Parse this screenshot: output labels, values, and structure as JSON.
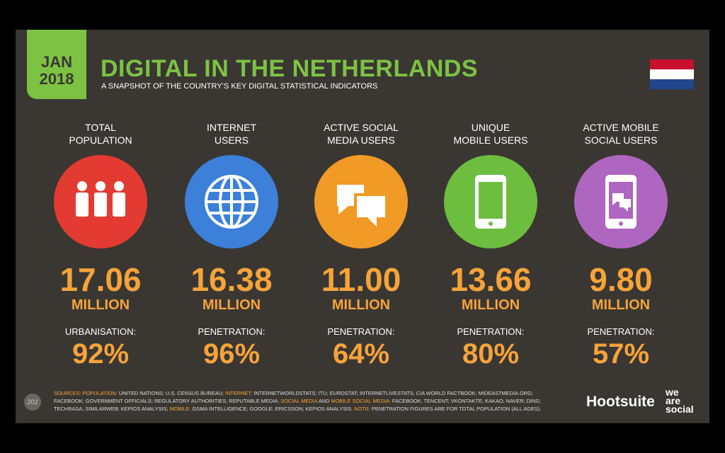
{
  "header": {
    "badge_month": "JAN",
    "badge_year": "2018",
    "title": "DIGITAL IN THE NETHERLANDS",
    "subtitle": "A SNAPSHOT OF THE COUNTRY’S KEY DIGITAL STATISTICAL INDICATORS"
  },
  "stats": [
    {
      "label": [
        "TOTAL",
        "POPULATION"
      ],
      "value": "17.06",
      "unit": "MILLION",
      "sub_label": "URBANISATION:",
      "sub_value": "92%",
      "color": "#e33b31"
    },
    {
      "label": [
        "INTERNET",
        "USERS"
      ],
      "value": "16.38",
      "unit": "MILLION",
      "sub_label": "PENETRATION:",
      "sub_value": "96%",
      "color": "#3c80d9"
    },
    {
      "label": [
        "ACTIVE SOCIAL",
        "MEDIA USERS"
      ],
      "value": "11.00",
      "unit": "MILLION",
      "sub_label": "PENETRATION:",
      "sub_value": "64%",
      "color": "#f19a26"
    },
    {
      "label": [
        "UNIQUE",
        "MOBILE USERS"
      ],
      "value": "13.66",
      "unit": "MILLION",
      "sub_label": "PENETRATION:",
      "sub_value": "80%",
      "color": "#6dbd3f"
    },
    {
      "label": [
        "ACTIVE MOBILE",
        "SOCIAL USERS"
      ],
      "value": "9.80",
      "unit": "MILLION",
      "sub_label": "PENETRATION:",
      "sub_value": "57%",
      "color": "#ae66c0"
    }
  ],
  "footer": {
    "page": "202",
    "sources": [
      {
        "text": "SOURCES: POPULATION:",
        "accent": true
      },
      {
        "text": " UNITED NATIONS; U.S. CENSUS BUREAU; ",
        "accent": false
      },
      {
        "text": "INTERNET:",
        "accent": true
      },
      {
        "text": " INTERNETWORLDSTATS; ITU; EUROSTAT; INTERNETLIVESTATS; CIA WORLD FACTBOOK; MIDEASTMEDIA.ORG; FACEBOOK; GOVERNMENT OFFICIALS; REGULATORY AUTHORITIES; REPUTABLE MEDIA; ",
        "accent": false
      },
      {
        "text": "SOCIAL MEDIA",
        "accent": true
      },
      {
        "text": " AND ",
        "accent": false
      },
      {
        "text": "MOBILE SOCIAL MEDIA:",
        "accent": true
      },
      {
        "text": " FACEBOOK; TENCENT; VKONTAKTE; KAKAO; NAVER; DING; TECHRASA; SIMILARWEB; KEPIOS ANALYSIS; ",
        "accent": false
      },
      {
        "text": "MOBILE:",
        "accent": true
      },
      {
        "text": " GSMA INTELLIGENCE; GOOGLE; ERICSSON; KEPIOS ANALYSIS. ",
        "accent": false
      },
      {
        "text": "NOTE:",
        "accent": true
      },
      {
        "text": " PENETRATION FIGURES ARE FOR TOTAL POPULATION (ALL AGES).",
        "accent": false
      }
    ],
    "logo_hootsuite": "Hootsuite",
    "logo_was": [
      "we",
      "are",
      "social"
    ]
  }
}
